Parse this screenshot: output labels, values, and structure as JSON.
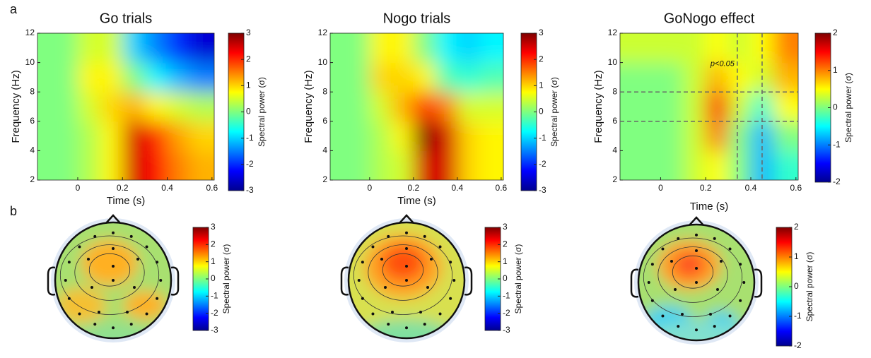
{
  "panel_labels": [
    "a",
    "b"
  ],
  "chart_data": [
    {
      "type": "heatmap",
      "title": "Go trials",
      "x_label": "Time (s)",
      "y_label": "Frequency (Hz)",
      "x": [
        -0.15,
        -0.05,
        0.05,
        0.15,
        0.25,
        0.35,
        0.45,
        0.55
      ],
      "y": [
        3,
        5,
        7,
        9,
        11
      ],
      "z": [
        [
          0,
          0,
          0.3,
          0.8,
          2.5,
          2.2,
          1.5,
          1.2
        ],
        [
          0,
          0,
          0.3,
          0.8,
          2.5,
          2,
          1.3,
          1
        ],
        [
          0,
          0,
          0.5,
          1,
          1.2,
          0.8,
          0.5,
          0.3
        ],
        [
          0,
          0,
          0.8,
          0.8,
          0,
          -0.8,
          -1.2,
          -1.5
        ],
        [
          0,
          0,
          0.5,
          0.5,
          -1,
          -1.5,
          -2,
          -2.5
        ]
      ],
      "xlim": [
        -0.18,
        0.61
      ],
      "xticks": [
        0,
        0.2,
        0.4,
        0.6
      ],
      "ylim": [
        2,
        12
      ],
      "yticks": [
        2,
        4,
        6,
        8,
        10,
        12
      ],
      "zlim": [
        -3,
        3
      ],
      "zticks": [
        -3,
        -2,
        -1,
        0,
        1,
        2,
        3
      ],
      "colorbar_label": "Spectral power (σ)",
      "colormap": "jet"
    },
    {
      "type": "heatmap",
      "title": "Nogo trials",
      "x_label": "Time (s)",
      "y_label": "Frequency (Hz)",
      "x": [
        -0.15,
        -0.05,
        0.05,
        0.15,
        0.25,
        0.35,
        0.45,
        0.55
      ],
      "y": [
        3,
        5,
        7,
        9,
        11
      ],
      "z": [
        [
          0,
          0,
          0.3,
          0.5,
          2.5,
          2.5,
          1,
          0.8
        ],
        [
          0,
          0,
          0.3,
          0.8,
          3,
          2.5,
          1,
          0.8
        ],
        [
          0,
          0,
          0.5,
          1.2,
          2,
          1.5,
          0.5,
          0.5
        ],
        [
          0,
          0,
          1,
          1,
          0.8,
          -0.3,
          -0.5,
          -0.3
        ],
        [
          0,
          0,
          0.8,
          0.8,
          0,
          -0.8,
          -1,
          -0.8
        ]
      ],
      "xlim": [
        -0.18,
        0.61
      ],
      "xticks": [
        0,
        0.2,
        0.4,
        0.6
      ],
      "ylim": [
        2,
        12
      ],
      "yticks": [
        2,
        4,
        6,
        8,
        10,
        12
      ],
      "zlim": [
        -3,
        3
      ],
      "zticks": [
        -3,
        -2,
        -1,
        0,
        1,
        2,
        3
      ],
      "colorbar_label": "Spectral power (σ)",
      "colormap": "jet"
    },
    {
      "type": "heatmap",
      "title": "GoNogo effect",
      "x_label": "Time (s)",
      "y_label": "Frequency (Hz)",
      "x": [
        -0.15,
        -0.05,
        0.05,
        0.15,
        0.25,
        0.35,
        0.45,
        0.55
      ],
      "y": [
        3,
        5,
        7,
        9,
        11
      ],
      "z": [
        [
          0,
          0,
          0,
          0.3,
          0.5,
          0,
          -0.8,
          -0.3
        ],
        [
          0,
          0,
          0,
          0.3,
          1,
          0,
          -0.8,
          0
        ],
        [
          0,
          0,
          0,
          0.3,
          1.5,
          0.3,
          -0.3,
          0.5
        ],
        [
          0,
          0,
          0,
          0.3,
          0.8,
          0.5,
          0.3,
          0.8
        ],
        [
          0.3,
          0.3,
          0.3,
          0.3,
          0.5,
          0.3,
          0.5,
          1
        ]
      ],
      "xlim": [
        -0.18,
        0.61
      ],
      "xticks": [
        0,
        0.2,
        0.4,
        0.6
      ],
      "ylim": [
        2,
        12
      ],
      "yticks": [
        2,
        4,
        6,
        8,
        10,
        12
      ],
      "zlim": [
        -2,
        2
      ],
      "zticks": [
        -2,
        -1,
        0,
        1,
        2
      ],
      "colorbar_label": "Spectral power (σ)",
      "colormap": "jet",
      "window": {
        "time": [
          0.34,
          0.45
        ],
        "frequency": [
          6,
          8
        ]
      },
      "annotation": "p<0.05"
    },
    {
      "type": "topoplot",
      "zlim": [
        -3,
        3
      ],
      "zticks": [
        -3,
        -2,
        -1,
        0,
        1,
        2,
        3
      ],
      "colorbar_label": "Spectral power (σ)",
      "colormap": "jet"
    },
    {
      "type": "topoplot",
      "zlim": [
        -3,
        3
      ],
      "zticks": [
        -3,
        -2,
        -1,
        0,
        1,
        2,
        3
      ],
      "colorbar_label": "Spectral power (σ)",
      "colormap": "jet"
    },
    {
      "type": "topoplot",
      "zlim": [
        -2,
        2
      ],
      "zticks": [
        -2,
        -1,
        0,
        1,
        2
      ],
      "colorbar_label": "Spectral power (σ)",
      "colormap": "jet"
    }
  ]
}
